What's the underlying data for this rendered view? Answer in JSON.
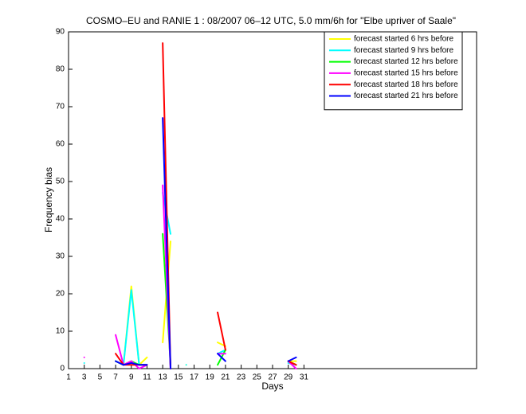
{
  "chart_data": {
    "type": "line",
    "title": "COSMO–EU and RANIE 1 : 08/2007 06–12 UTC, 5.0 mm/6h for \"Elbe upriver of Saale\"",
    "xlabel": "Days",
    "ylabel": "Frequency bias",
    "x": [
      3,
      4,
      7,
      8,
      9,
      10,
      11,
      12,
      13,
      14,
      15,
      16,
      17,
      20,
      21,
      22,
      29,
      30
    ],
    "series": [
      {
        "name": "forecast started 6 hrs before",
        "color": "#ffff00",
        "values": [
          null,
          null,
          null,
          1,
          22,
          1,
          3,
          null,
          7,
          34,
          null,
          1,
          null,
          7,
          6,
          null,
          2,
          2
        ]
      },
      {
        "name": "forecast started 9 hrs before",
        "color": "#00ffff",
        "values": [
          1.5,
          null,
          null,
          1,
          21,
          1,
          1,
          null,
          47,
          36,
          null,
          1,
          null,
          4,
          5,
          null,
          1.5,
          1
        ]
      },
      {
        "name": "forecast started 12 hrs before",
        "color": "#00ff00",
        "values": [
          null,
          null,
          2,
          1,
          2,
          1,
          1,
          null,
          36,
          1,
          null,
          null,
          null,
          1,
          5,
          null,
          2,
          1
        ]
      },
      {
        "name": "forecast started 15 hrs before",
        "color": "#ff00ff",
        "values": [
          3,
          null,
          9,
          1,
          2,
          0,
          1,
          null,
          49,
          0,
          null,
          null,
          null,
          4,
          4,
          null,
          2,
          0
        ]
      },
      {
        "name": "forecast started 18 hrs before",
        "color": "#ff0000",
        "values": [
          null,
          null,
          4,
          1,
          1,
          1,
          1,
          null,
          87,
          0,
          null,
          null,
          null,
          15,
          5,
          null,
          2,
          1
        ]
      },
      {
        "name": "forecast started 21 hrs before",
        "color": "#0000ff",
        "values": [
          null,
          null,
          2,
          1,
          1.5,
          1,
          1,
          null,
          67,
          0,
          null,
          null,
          null,
          4,
          2,
          null,
          2,
          3
        ]
      }
    ],
    "xlim": [
      1,
      53
    ],
    "ylim": [
      0,
      90
    ],
    "xticks": [
      1,
      3,
      5,
      7,
      9,
      11,
      13,
      15,
      17,
      19,
      21,
      23,
      25,
      27,
      29,
      31
    ],
    "yticks": [
      0,
      10,
      20,
      30,
      40,
      50,
      60,
      70,
      80,
      90
    ],
    "legend": "top-right"
  }
}
